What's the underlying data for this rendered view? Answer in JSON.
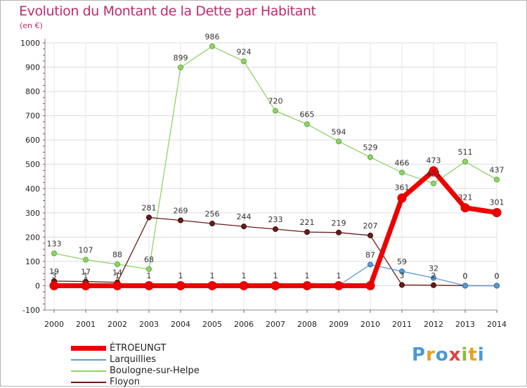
{
  "chart_data": {
    "type": "line",
    "title": "Evolution du Montant de la Dette par Habitant",
    "subtitle": "(en €)",
    "xlabel": "",
    "ylabel": "",
    "ylim": [
      -100,
      1000
    ],
    "y_ticks": [
      -100,
      0,
      100,
      200,
      300,
      400,
      500,
      600,
      700,
      800,
      900,
      1000
    ],
    "y_tick_labels": [
      "-100",
      "0",
      "100",
      "200",
      "300",
      "400",
      "500",
      "600",
      "700",
      "800",
      "900",
      "1000"
    ],
    "x": [
      "2000",
      "2001",
      "2002",
      "2003",
      "2004",
      "2005",
      "2006",
      "2007",
      "2008",
      "2009",
      "2010",
      "2011",
      "2012",
      "2013",
      "2014"
    ],
    "grid": true,
    "legend_position": "bottom-left",
    "series": [
      {
        "name": "ÉTROEUNGT",
        "color": "#ee0000",
        "values": [
          0,
          0,
          0,
          0,
          0,
          0,
          0,
          0,
          0,
          0,
          0,
          361,
          473,
          321,
          301
        ],
        "labels": [
          null,
          null,
          null,
          null,
          null,
          null,
          null,
          null,
          null,
          null,
          null,
          "361",
          "473",
          "321",
          "301"
        ]
      },
      {
        "name": "Larquillies",
        "color": "#5b9bd5",
        "values": [
          3,
          1,
          1,
          1,
          1,
          1,
          1,
          1,
          1,
          1,
          87,
          59,
          32,
          0,
          0
        ],
        "labels": [
          "3",
          "1",
          "1",
          "1",
          "1",
          "1",
          "1",
          "1",
          "1",
          "1",
          "87",
          "59",
          "32",
          "0",
          "0"
        ]
      },
      {
        "name": "Boulogne-sur-Helpe",
        "color": "#8fd36a",
        "values": [
          133,
          107,
          88,
          68,
          899,
          986,
          924,
          720,
          665,
          594,
          529,
          466,
          421,
          511,
          437
        ],
        "labels": [
          "133",
          "107",
          "88",
          "68",
          "899",
          "986",
          "924",
          "720",
          "665",
          "594",
          "529",
          "466",
          "421",
          "511",
          "437"
        ]
      },
      {
        "name": "Floyon",
        "color": "#6b1a1a",
        "values": [
          19,
          17,
          14,
          281,
          269,
          256,
          244,
          233,
          221,
          219,
          207,
          3,
          2,
          0,
          0
        ],
        "labels": [
          "19",
          "17",
          "14",
          "281",
          "269",
          "256",
          "244",
          "233",
          "221",
          "219",
          "207",
          "3",
          "2",
          "0",
          "0"
        ]
      }
    ]
  },
  "brand": {
    "letters": [
      "P",
      "r",
      "o",
      "x",
      "i",
      "t",
      "i"
    ]
  }
}
